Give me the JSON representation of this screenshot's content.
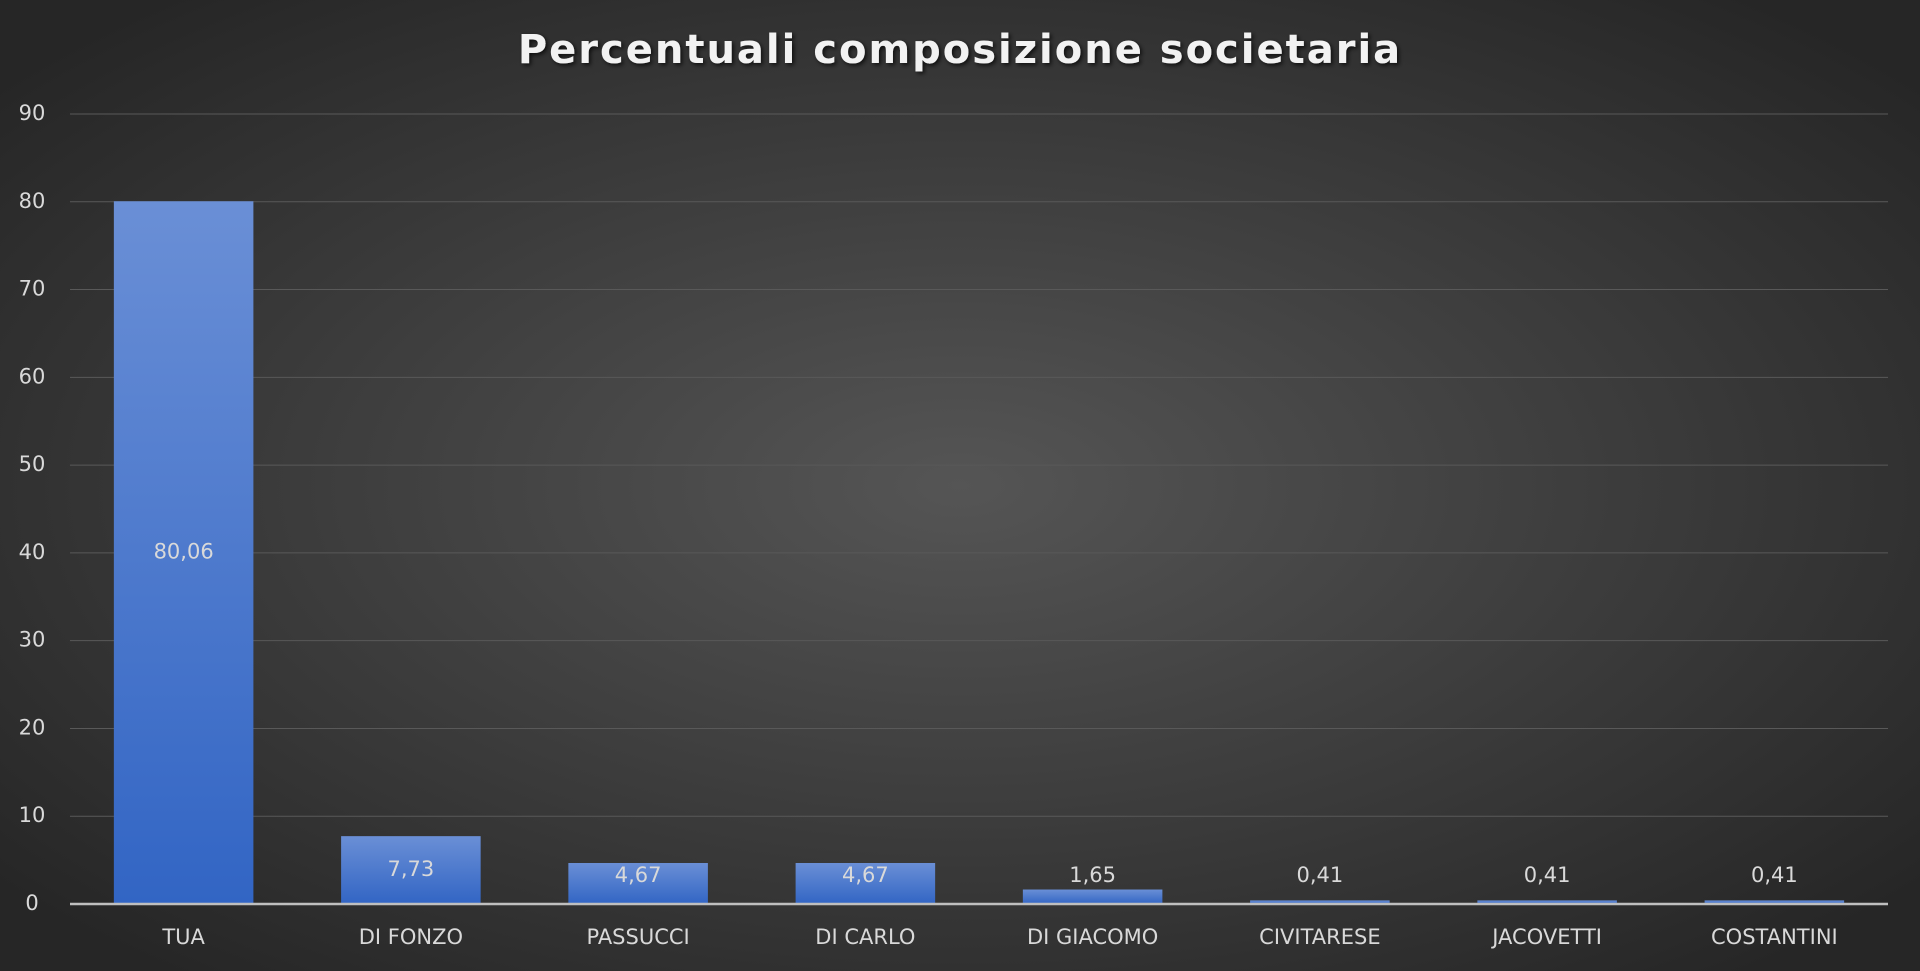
{
  "chart_data": {
    "type": "bar",
    "title": "Percentuali composizione societaria",
    "categories": [
      "TUA",
      "DI FONZO",
      "PASSUCCI",
      "DI CARLO",
      "DI GIACOMO",
      "CIVITARESE",
      "JACOVETTI",
      "COSTANTINI"
    ],
    "values": [
      80.06,
      7.73,
      4.67,
      4.67,
      1.65,
      0.41,
      0.41,
      0.41
    ],
    "value_labels": [
      "80,06",
      "7,73",
      "4,67",
      "4,67",
      "1,65",
      "0,41",
      "0,41",
      "0,41"
    ],
    "color": "#4472c4",
    "ylim": [
      0,
      90
    ],
    "yticks": [
      0,
      10,
      20,
      30,
      40,
      50,
      60,
      70,
      80,
      90
    ],
    "grid": true
  }
}
